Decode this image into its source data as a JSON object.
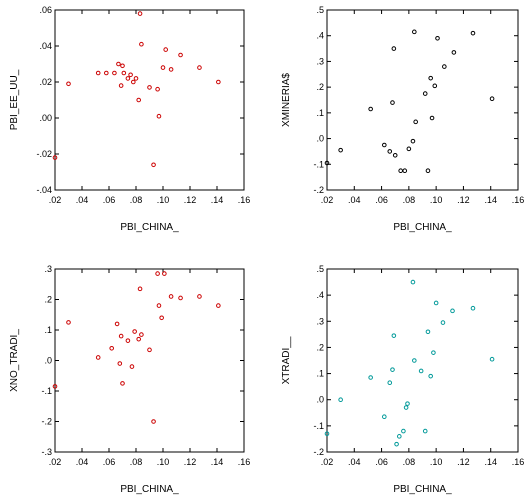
{
  "chart_data": [
    {
      "type": "scatter",
      "xlabel": "PBI_CHINA_",
      "ylabel": "PBI_EE_UU_",
      "xlim": [
        0.02,
        0.16
      ],
      "ylim": [
        -0.04,
        0.06
      ],
      "xticks": [
        ".02",
        ".04",
        ".06",
        ".08",
        ".10",
        ".12",
        ".14",
        ".16"
      ],
      "yticks": [
        "-.04",
        "-.02",
        ".00",
        ".02",
        ".04",
        ".06"
      ],
      "color": "#cc0000",
      "points": [
        [
          0.02,
          -0.022
        ],
        [
          0.03,
          0.019
        ],
        [
          0.052,
          0.025
        ],
        [
          0.058,
          0.025
        ],
        [
          0.064,
          0.025
        ],
        [
          0.067,
          0.03
        ],
        [
          0.069,
          0.018
        ],
        [
          0.07,
          0.029
        ],
        [
          0.071,
          0.025
        ],
        [
          0.074,
          0.022
        ],
        [
          0.076,
          0.024
        ],
        [
          0.078,
          0.02
        ],
        [
          0.08,
          0.022
        ],
        [
          0.082,
          0.01
        ],
        [
          0.083,
          0.058
        ],
        [
          0.084,
          0.041
        ],
        [
          0.09,
          0.017
        ],
        [
          0.093,
          -0.026
        ],
        [
          0.096,
          0.016
        ],
        [
          0.097,
          0.001
        ],
        [
          0.1,
          0.028
        ],
        [
          0.102,
          0.038
        ],
        [
          0.106,
          0.027
        ],
        [
          0.113,
          0.035
        ],
        [
          0.127,
          0.028
        ],
        [
          0.141,
          0.02
        ]
      ]
    },
    {
      "type": "scatter",
      "xlabel": "PBI_CHINA_",
      "ylabel": "XMINERIA$",
      "xlim": [
        0.02,
        0.16
      ],
      "ylim": [
        -0.2,
        0.5
      ],
      "xticks": [
        ".02",
        ".04",
        ".06",
        ".08",
        ".10",
        ".12",
        ".14",
        ".16"
      ],
      "yticks": [
        "-.2",
        "-.1",
        ".0",
        ".1",
        ".2",
        ".3",
        ".4",
        ".5"
      ],
      "color": "#000000",
      "points": [
        [
          0.02,
          -0.095
        ],
        [
          0.03,
          -0.045
        ],
        [
          0.052,
          0.115
        ],
        [
          0.062,
          -0.025
        ],
        [
          0.066,
          -0.05
        ],
        [
          0.068,
          0.14
        ],
        [
          0.069,
          0.35
        ],
        [
          0.07,
          -0.065
        ],
        [
          0.074,
          -0.125
        ],
        [
          0.077,
          -0.125
        ],
        [
          0.08,
          -0.04
        ],
        [
          0.083,
          -0.01
        ],
        [
          0.084,
          0.415
        ],
        [
          0.085,
          0.065
        ],
        [
          0.092,
          0.175
        ],
        [
          0.094,
          -0.125
        ],
        [
          0.096,
          0.235
        ],
        [
          0.097,
          0.08
        ],
        [
          0.099,
          0.205
        ],
        [
          0.101,
          0.39
        ],
        [
          0.106,
          0.28
        ],
        [
          0.113,
          0.335
        ],
        [
          0.127,
          0.41
        ],
        [
          0.141,
          0.155
        ]
      ]
    },
    {
      "type": "scatter",
      "xlabel": "PBI_CHINA_",
      "ylabel": "XNO_TRADI_",
      "xlim": [
        0.02,
        0.16
      ],
      "ylim": [
        -0.3,
        0.3
      ],
      "xticks": [
        ".02",
        ".04",
        ".06",
        ".08",
        ".10",
        ".12",
        ".14",
        ".16"
      ],
      "yticks": [
        "-.3",
        "-.2",
        "-.1",
        ".0",
        ".1",
        ".2",
        ".3"
      ],
      "color": "#cc0000",
      "points": [
        [
          0.02,
          -0.085
        ],
        [
          0.03,
          0.125
        ],
        [
          0.052,
          0.01
        ],
        [
          0.062,
          0.04
        ],
        [
          0.066,
          0.12
        ],
        [
          0.068,
          -0.01
        ],
        [
          0.069,
          0.08
        ],
        [
          0.07,
          -0.075
        ],
        [
          0.074,
          0.065
        ],
        [
          0.077,
          -0.02
        ],
        [
          0.079,
          0.095
        ],
        [
          0.082,
          0.07
        ],
        [
          0.083,
          0.235
        ],
        [
          0.084,
          0.085
        ],
        [
          0.09,
          0.035
        ],
        [
          0.093,
          -0.2
        ],
        [
          0.096,
          0.285
        ],
        [
          0.097,
          0.18
        ],
        [
          0.099,
          0.14
        ],
        [
          0.101,
          0.285
        ],
        [
          0.106,
          0.21
        ],
        [
          0.113,
          0.205
        ],
        [
          0.127,
          0.21
        ],
        [
          0.141,
          0.18
        ]
      ]
    },
    {
      "type": "scatter",
      "xlabel": "PBI_CHINA_",
      "ylabel": "XTRADI__",
      "xlim": [
        0.02,
        0.16
      ],
      "ylim": [
        -0.2,
        0.5
      ],
      "xticks": [
        ".02",
        ".04",
        ".06",
        ".08",
        ".10",
        ".12",
        ".14",
        ".16"
      ],
      "yticks": [
        "-.2",
        "-.1",
        ".0",
        ".1",
        ".2",
        ".3",
        ".4",
        ".5"
      ],
      "color": "#009999",
      "points": [
        [
          0.02,
          -0.13
        ],
        [
          0.03,
          0.0
        ],
        [
          0.052,
          0.085
        ],
        [
          0.062,
          -0.065
        ],
        [
          0.066,
          0.065
        ],
        [
          0.068,
          0.115
        ],
        [
          0.069,
          0.245
        ],
        [
          0.071,
          -0.17
        ],
        [
          0.073,
          -0.14
        ],
        [
          0.076,
          -0.12
        ],
        [
          0.078,
          -0.03
        ],
        [
          0.079,
          -0.015
        ],
        [
          0.083,
          0.45
        ],
        [
          0.084,
          0.15
        ],
        [
          0.089,
          0.11
        ],
        [
          0.092,
          -0.12
        ],
        [
          0.094,
          0.26
        ],
        [
          0.096,
          0.09
        ],
        [
          0.098,
          0.18
        ],
        [
          0.1,
          0.37
        ],
        [
          0.105,
          0.295
        ],
        [
          0.112,
          0.34
        ],
        [
          0.127,
          0.35
        ],
        [
          0.141,
          0.155
        ]
      ]
    }
  ]
}
